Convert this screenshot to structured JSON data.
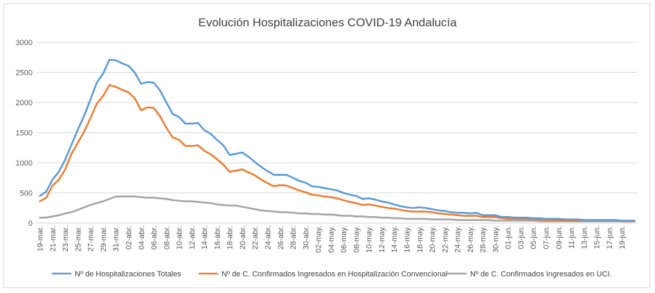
{
  "chart_data": {
    "type": "line",
    "title": "Evolución Hospitalizaciones COVID-19 Andalucía",
    "xlabel": "",
    "ylabel": "",
    "ylim": [
      0,
      3000
    ],
    "yticks": [
      "0",
      "500",
      "1000",
      "1500",
      "2000",
      "2500",
      "3000"
    ],
    "grid": true,
    "legend_position": "bottom",
    "x": [
      "19-mar.",
      "20-mar.",
      "21-mar.",
      "22-mar.",
      "23-mar.",
      "24-mar.",
      "25-mar.",
      "26-mar.",
      "27-mar.",
      "28-mar.",
      "29-mar.",
      "30-mar.",
      "31-mar.",
      "01-abr.",
      "02-abr.",
      "03-abr.",
      "04-abr.",
      "05-abr.",
      "06-abr.",
      "07-abr.",
      "08-abr.",
      "09-abr.",
      "10-abr.",
      "11-abr.",
      "12-abr.",
      "13-abr.",
      "14-abr.",
      "15-abr.",
      "16-abr.",
      "17-abr.",
      "18-abr.",
      "19-abr.",
      "20-abr.",
      "21-abr.",
      "22-abr.",
      "23-abr.",
      "24-abr.",
      "25-abr.",
      "26-abr.",
      "27-abr.",
      "28-abr.",
      "29-abr.",
      "30-abr.",
      "01-may.",
      "02-may.",
      "03-may.",
      "04-may.",
      "05-may.",
      "06-may.",
      "07-may.",
      "08-may.",
      "09-may.",
      "10-may.",
      "11-may.",
      "12-may.",
      "13-may.",
      "14-may.",
      "15-may.",
      "16-may.",
      "17-may.",
      "18-may.",
      "19-may.",
      "20-may.",
      "21-may.",
      "22-may.",
      "23-may.",
      "24-may.",
      "25-may.",
      "26-may.",
      "27-may.",
      "28-may.",
      "29-may.",
      "30-may.",
      "31-may.",
      "01-jun.",
      "02-jun.",
      "03-jun.",
      "04-jun.",
      "05-jun.",
      "06-jun.",
      "07-jun.",
      "08-jun.",
      "09-jun.",
      "10-jun.",
      "11-jun.",
      "12-jun.",
      "13-jun.",
      "14-jun.",
      "15-jun.",
      "16-jun.",
      "17-jun.",
      "18-jun.",
      "19-jun.",
      "20-jun.",
      "21-jun."
    ],
    "x_tick_labels": [
      "19-mar.",
      "21-mar.",
      "23-mar.",
      "25-mar.",
      "27-mar.",
      "29-mar.",
      "31-mar.",
      "02-abr.",
      "04-abr.",
      "06-abr.",
      "08-abr.",
      "10-abr.",
      "12-abr.",
      "14-abr.",
      "16-abr.",
      "18-abr.",
      "20-abr.",
      "22-abr.",
      "24-abr.",
      "26-abr.",
      "28-abr.",
      "30-abr.",
      "02-may.",
      "04-may.",
      "06-may.",
      "08-may.",
      "10-may.",
      "12-may.",
      "14-may.",
      "16-may.",
      "18-may.",
      "20-may.",
      "22-may.",
      "24-may.",
      "26-may.",
      "28-may.",
      "30-may.",
      "01-jun.",
      "03-jun.",
      "05-jun.",
      "07-jun.",
      "09-jun.",
      "11-jun.",
      "13-jun.",
      "15-jun.",
      "17-jun.",
      "19-jun."
    ],
    "series": [
      {
        "name": "Nº de Hospitalizaciones Totales",
        "color": "#5b9bd5",
        "values": [
          450,
          520,
          720,
          850,
          1050,
          1300,
          1550,
          1780,
          2050,
          2330,
          2480,
          2710,
          2700,
          2650,
          2610,
          2500,
          2310,
          2340,
          2330,
          2200,
          2000,
          1810,
          1760,
          1650,
          1650,
          1660,
          1540,
          1480,
          1380,
          1290,
          1130,
          1150,
          1170,
          1100,
          1010,
          930,
          860,
          800,
          800,
          800,
          750,
          700,
          670,
          610,
          600,
          580,
          560,
          540,
          500,
          470,
          450,
          400,
          410,
          390,
          360,
          340,
          310,
          280,
          260,
          250,
          260,
          250,
          230,
          210,
          200,
          180,
          170,
          170,
          160,
          170,
          130,
          130,
          130,
          100,
          100,
          90,
          90,
          90,
          80,
          80,
          70,
          70,
          70,
          60,
          60,
          60,
          50,
          50,
          50,
          50,
          50,
          50,
          40,
          40,
          40
        ]
      },
      {
        "name": "Nº de C. Confirmados Ingresados en Hospitalización Convencional",
        "color": "#ed7d31",
        "values": [
          360,
          420,
          620,
          720,
          890,
          1150,
          1330,
          1520,
          1740,
          1980,
          2110,
          2290,
          2260,
          2210,
          2170,
          2070,
          1870,
          1920,
          1910,
          1770,
          1580,
          1420,
          1380,
          1280,
          1280,
          1290,
          1200,
          1140,
          1060,
          970,
          850,
          870,
          890,
          840,
          790,
          720,
          660,
          610,
          630,
          620,
          580,
          540,
          510,
          470,
          460,
          440,
          430,
          410,
          380,
          350,
          330,
          300,
          310,
          290,
          270,
          250,
          240,
          220,
          200,
          190,
          190,
          190,
          180,
          160,
          150,
          140,
          130,
          120,
          120,
          120,
          100,
          100,
          100,
          80,
          70,
          70,
          70,
          70,
          60,
          60,
          50,
          50,
          50,
          40,
          40,
          40,
          40,
          40,
          40,
          40,
          40,
          40,
          30,
          30,
          30
        ]
      },
      {
        "name": "Nº de C. Confirmados Ingresados en UCI.",
        "color": "#a5a5a5",
        "values": [
          90,
          90,
          110,
          130,
          160,
          180,
          220,
          260,
          300,
          330,
          360,
          400,
          440,
          440,
          440,
          440,
          430,
          420,
          420,
          410,
          400,
          380,
          370,
          360,
          360,
          350,
          340,
          330,
          310,
          300,
          290,
          290,
          270,
          250,
          230,
          210,
          200,
          190,
          180,
          180,
          170,
          160,
          160,
          150,
          150,
          140,
          140,
          130,
          120,
          120,
          110,
          110,
          100,
          100,
          90,
          90,
          80,
          80,
          70,
          70,
          70,
          70,
          60,
          60,
          60,
          60,
          50,
          50,
          50,
          50,
          50,
          50,
          40,
          40,
          40,
          40,
          40,
          40,
          40,
          30,
          30,
          30,
          30,
          30,
          30,
          30,
          30,
          30,
          30,
          30,
          30,
          30,
          30,
          30,
          30
        ]
      }
    ]
  }
}
